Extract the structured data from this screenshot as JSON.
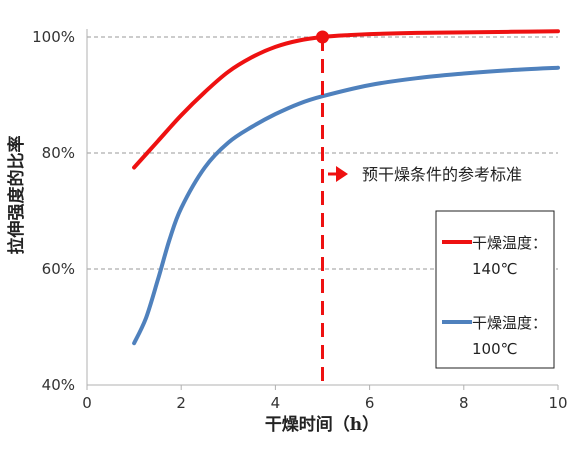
{
  "chart_data": {
    "type": "line",
    "xlabel": "干燥时间（h）",
    "ylabel": "拉伸强度的比率",
    "xlim": [
      0,
      10
    ],
    "ylim": [
      40,
      100
    ],
    "x_ticks": [
      "0",
      "2",
      "4",
      "6",
      "8",
      "10"
    ],
    "y_ticks": [
      "40%",
      "60%",
      "80%",
      "100%"
    ],
    "grid": "horizontal dashed",
    "legend_position": "lower-right",
    "series": [
      {
        "name_line1": "干燥温度：",
        "name_line2": "140℃",
        "color": "#ee1111",
        "x": [
          1,
          1.5,
          2,
          2.5,
          3,
          3.5,
          4,
          4.5,
          5,
          5.5,
          6,
          7,
          8,
          9,
          10
        ],
        "y": [
          77.5,
          82,
          86.5,
          90.5,
          94,
          96.5,
          98.3,
          99.4,
          100,
          100.3,
          100.5,
          100.7,
          100.8,
          100.9,
          101
        ]
      },
      {
        "name_line1": "干燥温度：",
        "name_line2": "100℃",
        "color": "#4f81bd",
        "x": [
          1,
          1.25,
          1.5,
          1.75,
          2,
          2.5,
          3,
          3.5,
          4,
          4.5,
          5,
          6,
          7,
          8,
          9,
          10
        ],
        "y": [
          47.2,
          51.5,
          58,
          65,
          70.5,
          77.5,
          81.8,
          84.5,
          86.7,
          88.5,
          89.8,
          91.7,
          92.9,
          93.7,
          94.3,
          94.7
        ]
      }
    ],
    "reference_line": {
      "x": 5,
      "y": 100
    },
    "annotation": "预干燥条件的参考标准",
    "reference_color": "#ee1111"
  }
}
